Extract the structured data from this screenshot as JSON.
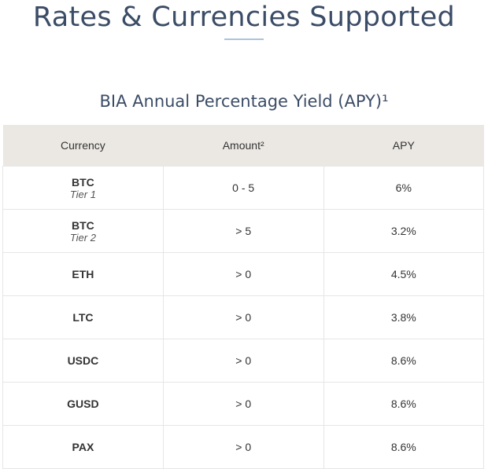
{
  "header": {
    "title": "Rates & Currencies Supported",
    "subtitle": "BIA Annual Percentage Yield (APY)¹"
  },
  "table": {
    "columns": [
      "Currency",
      "Amount²",
      "APY"
    ],
    "rows": [
      {
        "currency": "BTC",
        "tier": "Tier 1",
        "amount": "0 - 5",
        "apy": "6%"
      },
      {
        "currency": "BTC",
        "tier": "Tier 2",
        "amount": "> 5",
        "apy": "3.2%"
      },
      {
        "currency": "ETH",
        "amount": "> 0",
        "apy": "4.5%"
      },
      {
        "currency": "LTC",
        "amount": "> 0",
        "apy": "3.8%"
      },
      {
        "currency": "USDC",
        "amount": "> 0",
        "apy": "8.6%"
      },
      {
        "currency": "GUSD",
        "amount": "> 0",
        "apy": "8.6%"
      },
      {
        "currency": "PAX",
        "amount": "> 0",
        "apy": "8.6%"
      }
    ]
  }
}
